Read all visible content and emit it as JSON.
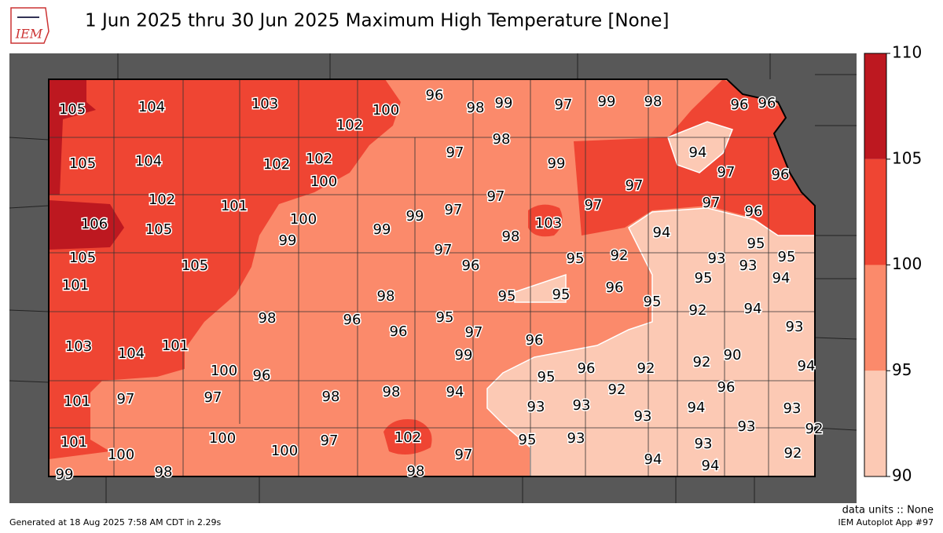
{
  "header": {
    "logo": "IEM",
    "title": "1 Jun 2025 thru 30 Jun 2025 Maximum High Temperature [None]"
  },
  "colorbar": {
    "ticks": [
      90,
      95,
      100,
      105,
      110
    ],
    "colors": [
      "#fcc9b4",
      "#fb8a6b",
      "#ef4533",
      "#bd1820"
    ]
  },
  "labels": {
    "values": [
      105,
      104,
      103,
      102,
      100,
      96,
      98,
      99,
      97,
      99,
      98,
      96,
      96,
      105,
      104,
      102,
      102,
      100,
      97,
      98,
      99,
      94,
      97,
      96,
      102,
      101,
      106,
      105,
      100,
      99,
      99,
      99,
      97,
      97,
      97,
      97,
      97,
      96,
      105,
      105,
      97,
      96,
      98,
      103,
      95,
      92,
      94,
      93,
      93,
      95,
      95,
      95,
      94,
      101,
      98,
      95,
      95,
      96,
      95,
      92,
      94,
      93,
      98,
      96,
      96,
      95,
      97,
      96,
      103,
      104,
      101,
      99,
      92,
      92,
      90,
      94,
      100,
      96,
      96,
      95,
      92,
      96,
      101,
      97,
      97,
      98,
      98,
      94,
      93,
      93,
      93,
      94,
      93,
      101,
      100,
      100,
      100,
      97,
      102,
      97,
      95,
      93,
      93,
      92,
      93,
      92,
      94,
      99,
      98,
      98,
      94
    ]
  },
  "footer": {
    "units": "data units :: None",
    "app": "IEM Autoplot App #97",
    "generated": "Generated at 18 Aug 2025 7:58 AM CDT in 2.29s"
  }
}
